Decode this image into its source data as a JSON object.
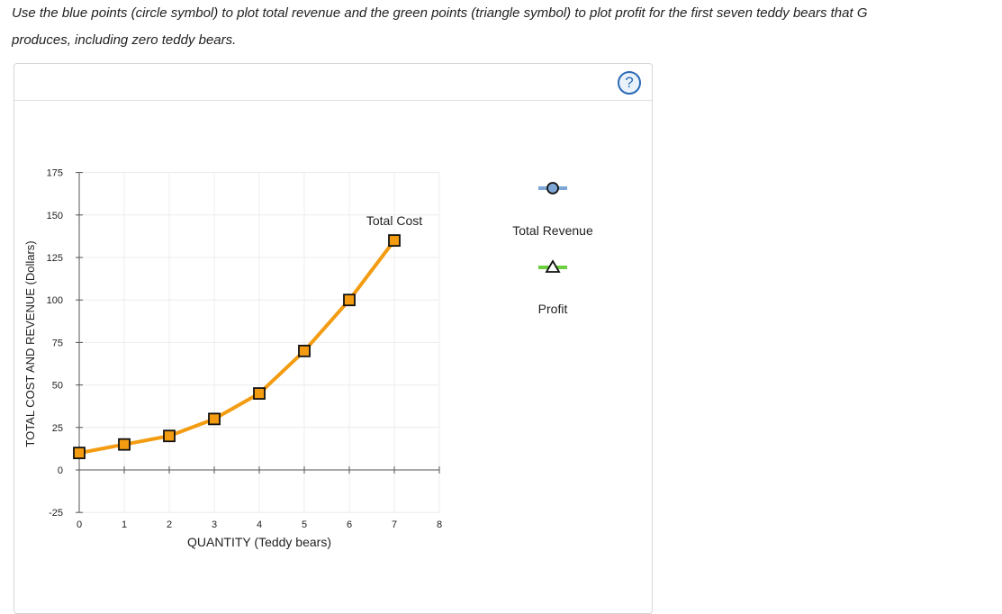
{
  "instructions": {
    "line1": "Use the blue points (circle symbol) to plot total revenue and the green points (triangle symbol) to plot profit for the first seven teddy bears that G",
    "line2": "produces, including zero teddy bears."
  },
  "help_label": "?",
  "chart_data": {
    "type": "line",
    "xlabel": "QUANTITY (Teddy bears)",
    "ylabel": "TOTAL COST AND REVENUE (Dollars)",
    "xlim": [
      0,
      8
    ],
    "ylim": [
      -25,
      175
    ],
    "x_ticks": [
      0,
      1,
      2,
      3,
      4,
      5,
      6,
      7,
      8
    ],
    "y_ticks": [
      -25,
      0,
      25,
      50,
      75,
      100,
      125,
      150,
      175
    ],
    "grid": true,
    "series": [
      {
        "name": "Total Cost",
        "color": "#f39c12",
        "marker": "square",
        "x": [
          0,
          1,
          2,
          3,
          4,
          5,
          6,
          7
        ],
        "y": [
          10,
          15,
          20,
          30,
          45,
          70,
          100,
          135
        ]
      }
    ],
    "legend": [
      {
        "label": "Total Revenue",
        "marker": "circle",
        "line_color": "#7fa7d6",
        "fill": "#7fa7d6"
      },
      {
        "label": "Profit",
        "marker": "triangle",
        "line_color": "#6ccf3f",
        "fill": "#ffffff"
      }
    ]
  }
}
